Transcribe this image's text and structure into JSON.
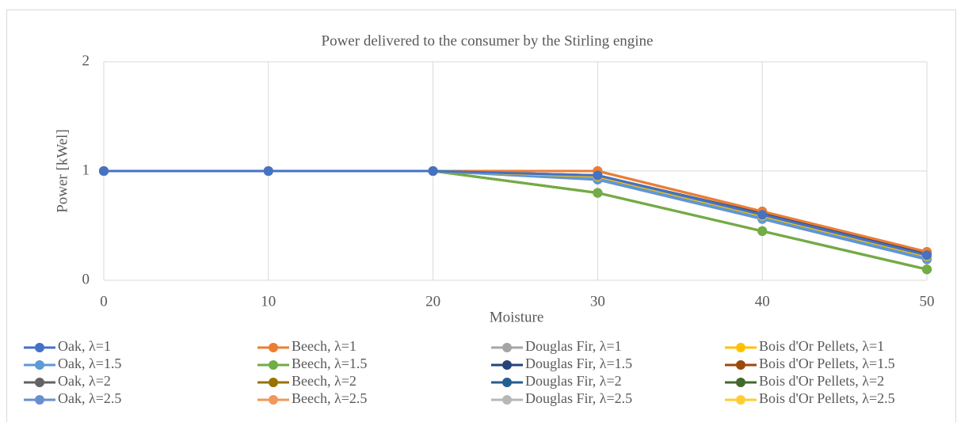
{
  "chart_data": {
    "type": "line",
    "title": "Power delivered to the consumer by the Stirling engine",
    "x_label": "Moisture",
    "y_label": "Power [kWel]",
    "x": [
      0,
      10,
      20,
      30,
      40,
      50
    ],
    "xlim": [
      0,
      50
    ],
    "xticks": [
      0,
      10,
      20,
      30,
      40,
      50
    ],
    "ylim": [
      0,
      2
    ],
    "yticks": [
      0,
      1,
      2
    ],
    "grid": true,
    "legend": "bottom",
    "series": [
      {
        "name": "Oak, λ=1",
        "color": "#4472c4",
        "values": [
          1,
          1,
          1,
          0.96,
          0.6,
          0.23
        ]
      },
      {
        "name": "Beech, λ=1",
        "color": "#ed7d31",
        "values": [
          1,
          1,
          1,
          1,
          0.63,
          0.26
        ]
      },
      {
        "name": "Douglas Fir, λ=1",
        "color": "#a5a5a5",
        "values": [
          1,
          1,
          1,
          0.96,
          0.6,
          0.23
        ]
      },
      {
        "name": "Bois d'Or Pellets, λ=1",
        "color": "#ffc000",
        "values": [
          1,
          1,
          1,
          0.95,
          0.59,
          0.22
        ]
      },
      {
        "name": "Oak, λ=1.5",
        "color": "#5b9bd5",
        "values": [
          1,
          1,
          1,
          0.93,
          0.57,
          0.2
        ]
      },
      {
        "name": "Beech, λ=1.5",
        "color": "#70ad47",
        "values": [
          1,
          1,
          1,
          0.8,
          0.45,
          0.1
        ]
      },
      {
        "name": "Douglas Fir, λ=1.5",
        "color": "#264478",
        "values": [
          1,
          1,
          1,
          0.96,
          0.61,
          0.24
        ]
      },
      {
        "name": "Bois d'Or Pellets, λ=1.5",
        "color": "#9e480e",
        "values": [
          1,
          1,
          1,
          1,
          0.63,
          0.26
        ]
      },
      {
        "name": "Oak, λ=2",
        "color": "#636363",
        "values": [
          1,
          1,
          1,
          0.95,
          0.59,
          0.22
        ]
      },
      {
        "name": "Beech, λ=2",
        "color": "#997300",
        "values": [
          1,
          1,
          1,
          0.8,
          0.45,
          0.1
        ]
      },
      {
        "name": "Douglas Fir, λ=2",
        "color": "#255e91",
        "values": [
          1,
          1,
          1,
          0.94,
          0.58,
          0.21
        ]
      },
      {
        "name": "Bois d'Or Pellets, λ=2",
        "color": "#43682b",
        "values": [
          1,
          1,
          1,
          0.8,
          0.45,
          0.1
        ]
      },
      {
        "name": "Oak, λ=2.5",
        "color": "#698ed0",
        "values": [
          1,
          1,
          1,
          0.92,
          0.56,
          0.19
        ]
      },
      {
        "name": "Beech, λ=2.5",
        "color": "#f1975a",
        "values": [
          1,
          1,
          1,
          1,
          0.63,
          0.26
        ]
      },
      {
        "name": "Douglas Fir, λ=2.5",
        "color": "#b7b7b7",
        "values": [
          1,
          1,
          1,
          0.93,
          0.57,
          0.2
        ]
      },
      {
        "name": "Bois d'Or Pellets, λ=2.5",
        "color": "#ffcd33",
        "values": [
          1,
          1,
          1,
          0.8,
          0.45,
          0.1
        ]
      }
    ]
  }
}
